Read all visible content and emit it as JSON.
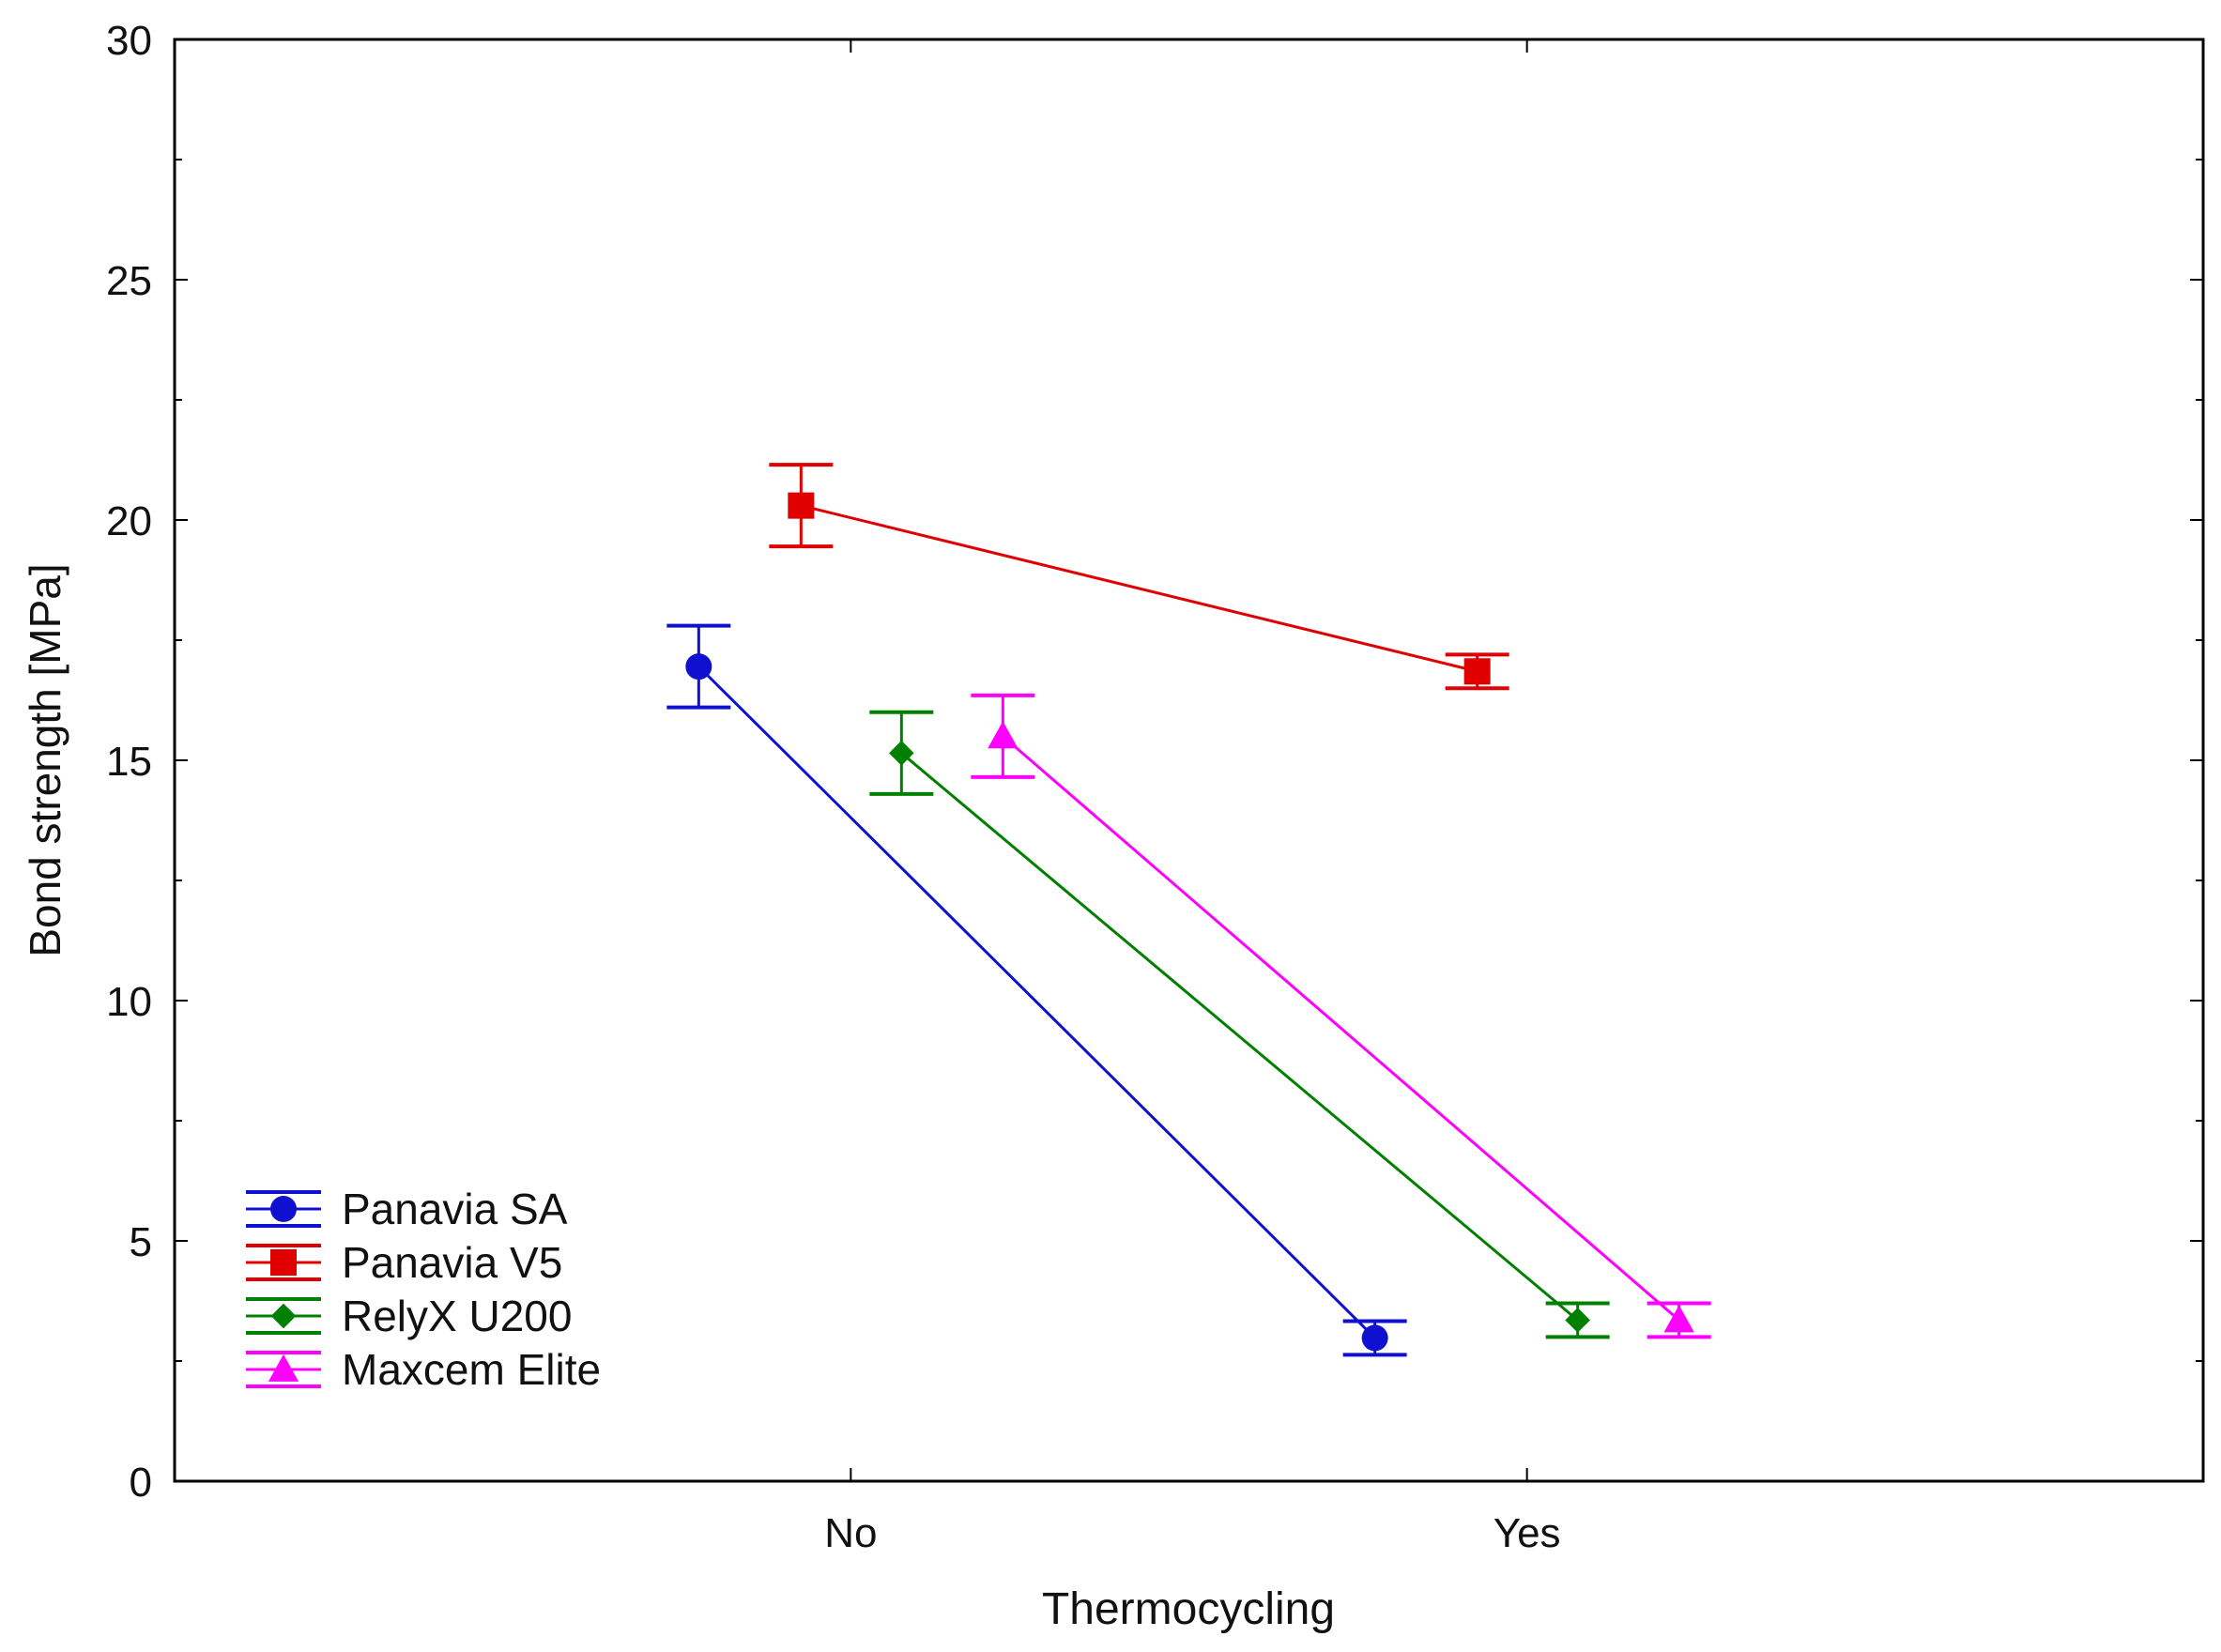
{
  "chart_data": {
    "type": "line",
    "title": "",
    "xlabel": "Thermocycling",
    "ylabel": "Bond strength [MPa]",
    "categories": [
      "No",
      "Yes"
    ],
    "ylim": [
      0,
      30
    ],
    "yticks": [
      "0",
      "5",
      "10",
      "15",
      "20",
      "25",
      "30"
    ],
    "grid": false,
    "legend_position": "bottom-left",
    "error_bars": true,
    "series": [
      {
        "name": "Panavia SA",
        "color": "#1010d0",
        "marker": "circle",
        "values": [
          16.95,
          2.98
        ],
        "errors": [
          0.85,
          0.35
        ]
      },
      {
        "name": "Panavia V5",
        "color": "#e00000",
        "marker": "square",
        "values": [
          20.3,
          16.85
        ],
        "errors": [
          0.85,
          0.35
        ]
      },
      {
        "name": "RelyX U200",
        "color": "#008000",
        "marker": "diamond",
        "values": [
          15.15,
          3.35
        ],
        "errors": [
          0.85,
          0.35
        ]
      },
      {
        "name": "Maxcem Elite",
        "color": "#ff00ff",
        "marker": "triangle",
        "values": [
          15.5,
          3.35
        ],
        "errors": [
          0.85,
          0.35
        ]
      }
    ]
  }
}
